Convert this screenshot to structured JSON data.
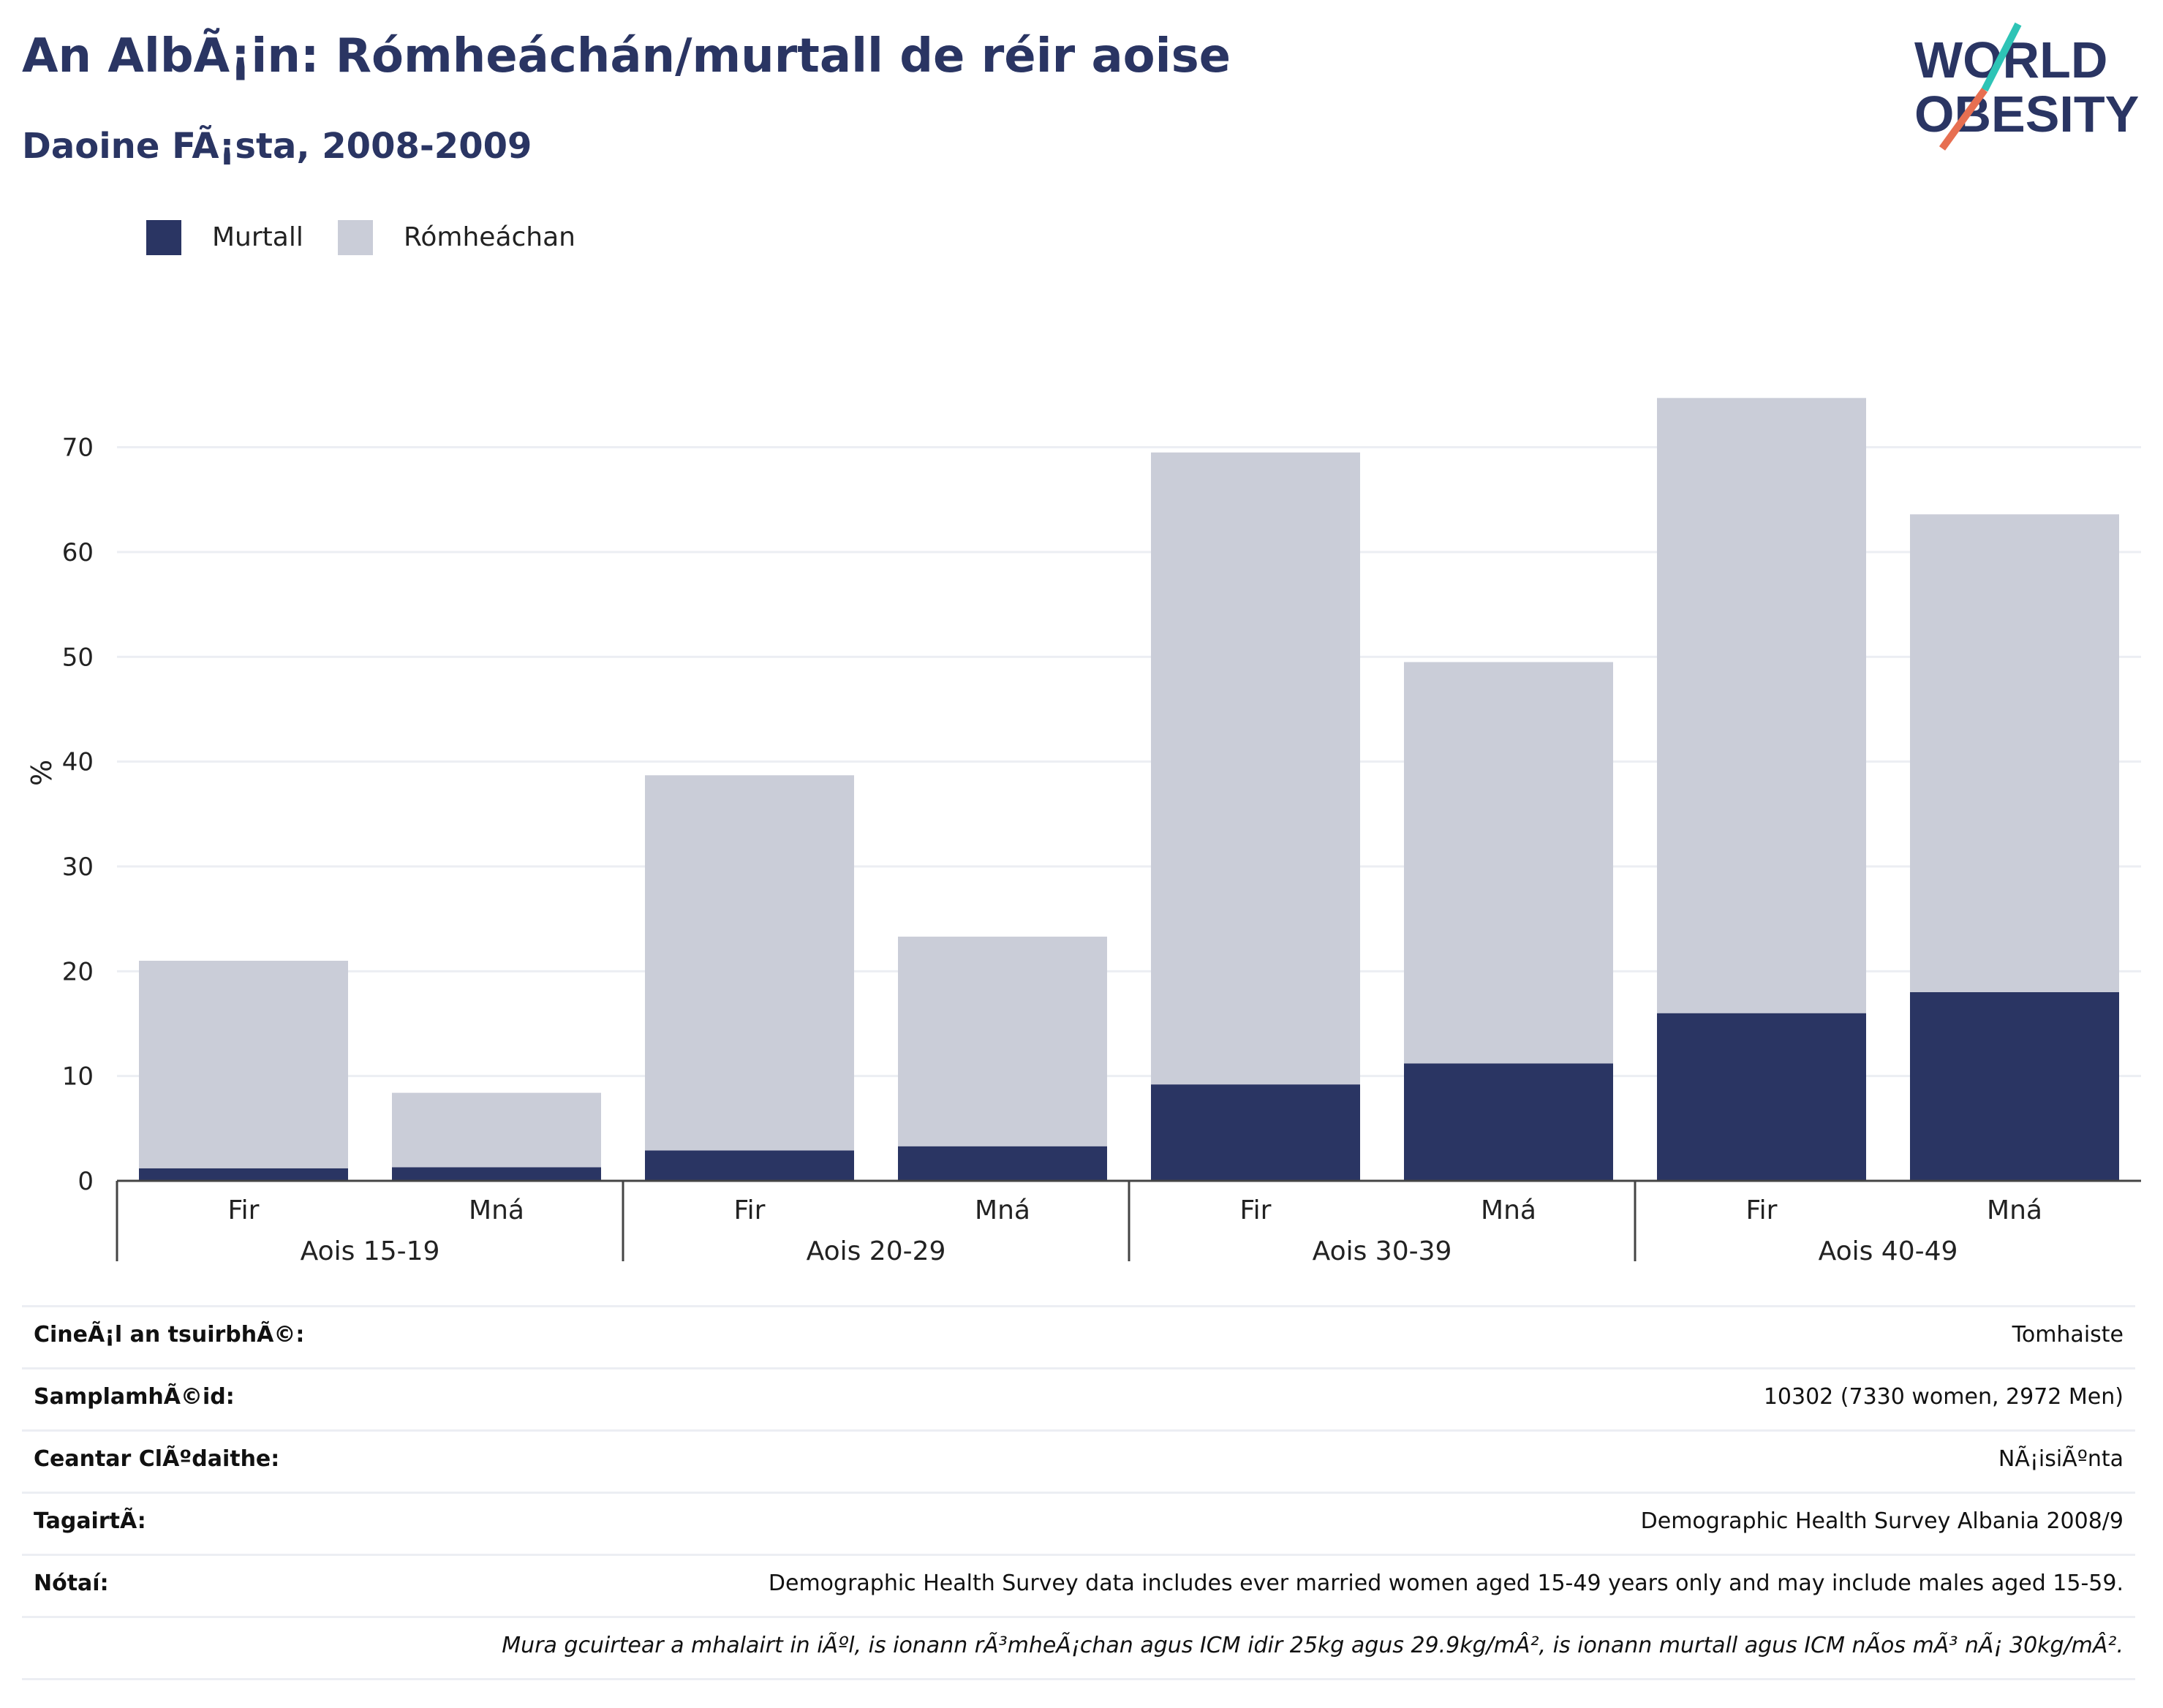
{
  "header": {
    "title": "An AlbÃ¡in: Rómheáchán/murtall de réir aoise",
    "subtitle": "Daoine FÃ¡sta, 2008-2009"
  },
  "logo": {
    "line1": "WORLD",
    "line2": "OBESITY",
    "colors": {
      "text": "#2a3563",
      "slash_top": "#2ec4b6",
      "slash_bottom": "#e76f51"
    }
  },
  "legend": {
    "items": [
      {
        "label": "Murtall",
        "color": "#2a3563"
      },
      {
        "label": "Rómheáchan",
        "color": "#cacdd8"
      }
    ]
  },
  "chart_data": {
    "type": "bar",
    "stacked": true,
    "ylabel": "%",
    "ylim": [
      0,
      75
    ],
    "yticks": [
      0,
      10,
      20,
      30,
      40,
      50,
      60,
      70
    ],
    "grid": true,
    "legend_position": "top-left",
    "groups": [
      {
        "label": "Aois 15-19",
        "categories": [
          "Fir",
          "Mná"
        ]
      },
      {
        "label": "Aois 20-29",
        "categories": [
          "Fir",
          "Mná"
        ]
      },
      {
        "label": "Aois 30-39",
        "categories": [
          "Fir",
          "Mná"
        ]
      },
      {
        "label": "Aois 40-49",
        "categories": [
          "Fir",
          "Mná"
        ]
      }
    ],
    "series": [
      {
        "name": "Murtall",
        "color": "#2a3563",
        "values": [
          1.2,
          1.3,
          2.9,
          3.3,
          9.2,
          11.2,
          16.0,
          18.0
        ]
      },
      {
        "name": "Rómheáchan",
        "color": "#cacdd8",
        "values": [
          19.8,
          7.1,
          35.8,
          20.0,
          60.3,
          38.3,
          58.7,
          45.6
        ]
      }
    ]
  },
  "info": {
    "rows": [
      {
        "label": "CineÃ¡l an tsuirbhÃ©:",
        "value": "Tomhaiste",
        "italic": false
      },
      {
        "label": "SamplamhÃ©id:",
        "value": "10302 (7330 women, 2972 Men)",
        "italic": false
      },
      {
        "label": "Ceantar ClÃºdaithe:",
        "value": "NÃ¡isiÃºnta",
        "italic": false
      },
      {
        "label": "TagairtÃ:",
        "value": "Demographic Health Survey Albania 2008/9",
        "italic": false
      },
      {
        "label": "Nótaí:",
        "value": "Demographic Health Survey data includes ever married women aged 15-49 years only and may include males aged 15-59.",
        "italic": false
      },
      {
        "label": "",
        "value": "Mura gcuirtear a mhalairt in iÃºl, is ionann rÃ³mheÃ¡chan agus ICM idir 25kg agus 29.9kg/mÂ², is ionann murtall agus ICM nÃos mÃ³ nÃ¡ 30kg/mÂ².",
        "italic": true
      }
    ]
  }
}
